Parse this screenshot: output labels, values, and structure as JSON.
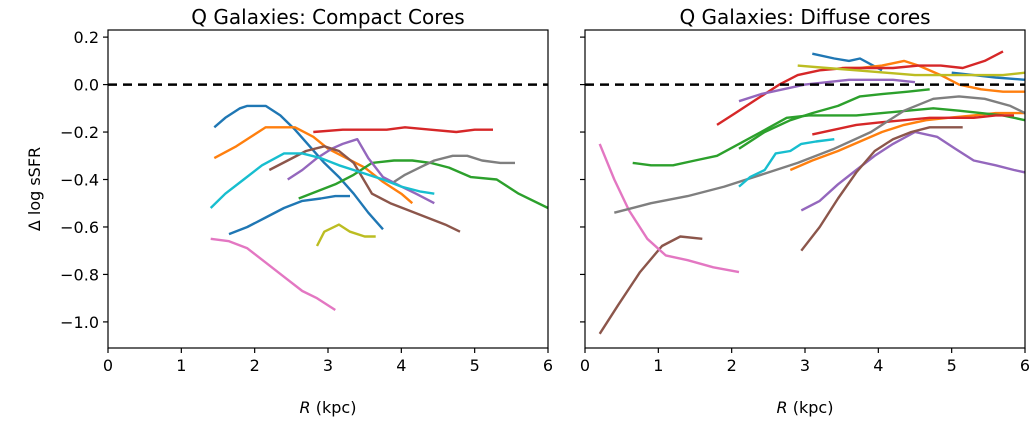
{
  "chart_data": [
    {
      "type": "line",
      "title": "Q Galaxies: Compact Cores",
      "xlabel_italic": "R",
      "xlabel_unit": " (kpc)",
      "ylabel": "Δ log sSFR",
      "xlim": [
        0,
        6
      ],
      "ylim": [
        -1.11,
        0.23
      ],
      "xticks": [
        0,
        1,
        2,
        3,
        4,
        5,
        6
      ],
      "yticks": [
        0.2,
        0.0,
        -0.2,
        -0.4,
        -0.6,
        -0.8,
        -1.0
      ],
      "ytick_labels": [
        "0.2",
        "0.0",
        "−0.2",
        "−0.4",
        "−0.6",
        "−0.8",
        "−1.0"
      ],
      "reference_line": {
        "y": 0.0,
        "style": "dashed",
        "color": "#000000"
      },
      "series": [
        {
          "color": "#1f77b4",
          "x": [
            1.45,
            1.6,
            1.8,
            1.9,
            2.15,
            2.35,
            2.55,
            2.75,
            2.95,
            3.15,
            3.35,
            3.55,
            3.75
          ],
          "y": [
            -0.18,
            -0.14,
            -0.1,
            -0.09,
            -0.09,
            -0.13,
            -0.19,
            -0.26,
            -0.33,
            -0.39,
            -0.46,
            -0.54,
            -0.61
          ]
        },
        {
          "color": "#1f77b4",
          "x": [
            1.65,
            1.9,
            2.15,
            2.4,
            2.65,
            2.9,
            3.1,
            3.3
          ],
          "y": [
            -0.63,
            -0.6,
            -0.56,
            -0.52,
            -0.49,
            -0.48,
            -0.47,
            -0.47
          ]
        },
        {
          "color": "#ff7f0e",
          "x": [
            1.45,
            1.75,
            1.95,
            2.15,
            2.35,
            2.55,
            2.8,
            3.0,
            3.25,
            3.5,
            3.75,
            4.0,
            4.15
          ],
          "y": [
            -0.31,
            -0.26,
            -0.22,
            -0.18,
            -0.18,
            -0.18,
            -0.22,
            -0.27,
            -0.31,
            -0.35,
            -0.41,
            -0.46,
            -0.5
          ]
        },
        {
          "color": "#2ca02c",
          "x": [
            2.6,
            2.85,
            3.1,
            3.35,
            3.6,
            3.9,
            4.15,
            4.4,
            4.65,
            4.95,
            5.3,
            5.6,
            6.0
          ],
          "y": [
            -0.48,
            -0.45,
            -0.42,
            -0.38,
            -0.33,
            -0.32,
            -0.32,
            -0.33,
            -0.35,
            -0.39,
            -0.4,
            -0.46,
            -0.52
          ]
        },
        {
          "color": "#d62728",
          "x": [
            2.8,
            3.2,
            3.5,
            3.8,
            4.05,
            4.4,
            4.75,
            5.0,
            5.25
          ],
          "y": [
            -0.2,
            -0.19,
            -0.19,
            -0.19,
            -0.18,
            -0.19,
            -0.2,
            -0.19,
            -0.19
          ]
        },
        {
          "color": "#9467bd",
          "x": [
            2.45,
            2.65,
            2.85,
            3.05,
            3.2,
            3.4,
            3.55,
            3.75,
            4.0,
            4.2,
            4.45
          ],
          "y": [
            -0.4,
            -0.36,
            -0.31,
            -0.27,
            -0.25,
            -0.23,
            -0.31,
            -0.39,
            -0.43,
            -0.46,
            -0.5
          ]
        },
        {
          "color": "#8c564b",
          "x": [
            2.2,
            2.45,
            2.7,
            2.95,
            3.15,
            3.35,
            3.6,
            3.85,
            4.1,
            4.35,
            4.6,
            4.8
          ],
          "y": [
            -0.36,
            -0.32,
            -0.28,
            -0.26,
            -0.28,
            -0.33,
            -0.46,
            -0.5,
            -0.53,
            -0.56,
            -0.59,
            -0.62
          ]
        },
        {
          "color": "#e377c2",
          "x": [
            1.4,
            1.65,
            1.9,
            2.15,
            2.4,
            2.65,
            2.85,
            3.1
          ],
          "y": [
            -0.65,
            -0.66,
            -0.69,
            -0.75,
            -0.81,
            -0.87,
            -0.9,
            -0.95
          ]
        },
        {
          "color": "#7f7f7f",
          "x": [
            3.9,
            4.05,
            4.25,
            4.45,
            4.7,
            4.9,
            5.1,
            5.35,
            5.55
          ],
          "y": [
            -0.41,
            -0.38,
            -0.35,
            -0.32,
            -0.3,
            -0.3,
            -0.32,
            -0.33,
            -0.33
          ]
        },
        {
          "color": "#bcbd22",
          "x": [
            2.85,
            2.95,
            3.15,
            3.3,
            3.5,
            3.65
          ],
          "y": [
            -0.68,
            -0.62,
            -0.59,
            -0.62,
            -0.64,
            -0.64
          ]
        },
        {
          "color": "#17becf",
          "x": [
            1.4,
            1.6,
            1.85,
            2.1,
            2.4,
            2.65,
            2.9,
            3.15,
            3.45,
            3.75,
            4.0,
            4.25,
            4.45
          ],
          "y": [
            -0.52,
            -0.46,
            -0.4,
            -0.34,
            -0.29,
            -0.29,
            -0.31,
            -0.34,
            -0.37,
            -0.4,
            -0.43,
            -0.45,
            -0.46
          ]
        }
      ]
    },
    {
      "type": "line",
      "title": "Q Galaxies: Diffuse cores",
      "xlabel_italic": "R",
      "xlabel_unit": " (kpc)",
      "ylabel": "",
      "xlim": [
        0,
        6
      ],
      "ylim": [
        -1.11,
        0.23
      ],
      "xticks": [
        0,
        1,
        2,
        3,
        4,
        5,
        6
      ],
      "yticks": [
        0.2,
        0.0,
        -0.2,
        -0.4,
        -0.6,
        -0.8,
        -1.0
      ],
      "ytick_labels": [
        "",
        "",
        "",
        "",
        "",
        "",
        ""
      ],
      "reference_line": {
        "y": 0.0,
        "style": "dashed",
        "color": "#000000"
      },
      "series": [
        {
          "color": "#1f77b4",
          "x": [
            3.1,
            3.4,
            3.6,
            3.75,
            4.05
          ],
          "y": [
            0.13,
            0.11,
            0.1,
            0.11,
            0.06
          ]
        },
        {
          "color": "#1f77b4",
          "x": [
            5.0,
            5.3,
            5.6,
            6.0
          ],
          "y": [
            0.05,
            0.04,
            0.03,
            0.02
          ]
        },
        {
          "color": "#ff7f0e",
          "x": [
            2.8,
            3.1,
            3.45,
            3.75,
            4.05,
            4.35,
            4.65,
            4.95,
            5.3,
            5.6,
            6.0
          ],
          "y": [
            -0.36,
            -0.32,
            -0.28,
            -0.24,
            -0.2,
            -0.17,
            -0.15,
            -0.14,
            -0.13,
            -0.12,
            -0.12
          ]
        },
        {
          "color": "#ff7f0e",
          "x": [
            3.5,
            3.75,
            4.05,
            4.35,
            4.55,
            4.85,
            5.1,
            5.4,
            5.7,
            6.0
          ],
          "y": [
            0.07,
            0.07,
            0.08,
            0.1,
            0.08,
            0.04,
            0.0,
            -0.02,
            -0.03,
            -0.03
          ]
        },
        {
          "color": "#2ca02c",
          "x": [
            0.65,
            0.9,
            1.2,
            1.5,
            1.8,
            2.1,
            2.4,
            2.75,
            3.05,
            3.4,
            3.7,
            4.05,
            4.4,
            4.75,
            5.1,
            5.4,
            5.7,
            6.0
          ],
          "y": [
            -0.33,
            -0.34,
            -0.34,
            -0.32,
            -0.3,
            -0.25,
            -0.2,
            -0.14,
            -0.13,
            -0.13,
            -0.13,
            -0.12,
            -0.11,
            -0.1,
            -0.11,
            -0.12,
            -0.13,
            -0.15
          ]
        },
        {
          "color": "#2ca02c",
          "x": [
            2.1,
            2.45,
            2.8,
            3.1,
            3.45,
            3.75,
            4.05,
            4.4,
            4.7
          ],
          "y": [
            -0.27,
            -0.2,
            -0.15,
            -0.12,
            -0.09,
            -0.05,
            -0.04,
            -0.03,
            -0.02
          ]
        },
        {
          "color": "#d62728",
          "x": [
            1.8,
            2.05,
            2.35,
            2.65,
            2.9,
            3.2,
            3.55,
            3.85,
            4.2,
            4.55,
            4.85,
            5.15,
            5.45,
            5.7
          ],
          "y": [
            -0.17,
            -0.12,
            -0.06,
            0.0,
            0.04,
            0.06,
            0.07,
            0.07,
            0.07,
            0.08,
            0.08,
            0.07,
            0.1,
            0.14
          ]
        },
        {
          "color": "#d62728",
          "x": [
            3.1,
            3.4,
            3.7,
            4.0,
            4.35,
            4.7,
            5.0,
            5.3,
            5.6,
            5.85
          ],
          "y": [
            -0.21,
            -0.19,
            -0.17,
            -0.16,
            -0.15,
            -0.14,
            -0.14,
            -0.14,
            -0.13,
            -0.13
          ]
        },
        {
          "color": "#9467bd",
          "x": [
            2.1,
            2.4,
            2.7,
            3.0,
            3.3,
            3.6,
            3.9,
            4.2,
            4.5
          ],
          "y": [
            -0.07,
            -0.04,
            -0.02,
            0.0,
            0.01,
            0.02,
            0.02,
            0.02,
            0.01
          ]
        },
        {
          "color": "#9467bd",
          "x": [
            2.95,
            3.2,
            3.45,
            3.7,
            3.95,
            4.2,
            4.5,
            4.8,
            5.05,
            5.3,
            5.6,
            5.85,
            6.0
          ],
          "y": [
            -0.53,
            -0.49,
            -0.42,
            -0.36,
            -0.3,
            -0.25,
            -0.2,
            -0.22,
            -0.27,
            -0.32,
            -0.34,
            -0.36,
            -0.37
          ]
        },
        {
          "color": "#8c564b",
          "x": [
            0.2,
            0.45,
            0.75,
            1.05,
            1.3,
            1.6
          ],
          "y": [
            -1.05,
            -0.93,
            -0.79,
            -0.68,
            -0.64,
            -0.65
          ]
        },
        {
          "color": "#8c564b",
          "x": [
            2.95,
            3.2,
            3.45,
            3.7,
            3.95,
            4.2,
            4.45,
            4.7,
            4.95,
            5.15
          ],
          "y": [
            -0.7,
            -0.6,
            -0.48,
            -0.37,
            -0.28,
            -0.23,
            -0.2,
            -0.18,
            -0.18,
            -0.18
          ]
        },
        {
          "color": "#e377c2",
          "x": [
            0.2,
            0.4,
            0.6,
            0.85,
            1.1,
            1.4,
            1.75,
            2.1
          ],
          "y": [
            -0.25,
            -0.4,
            -0.53,
            -0.65,
            -0.72,
            -0.74,
            -0.77,
            -0.79
          ]
        },
        {
          "color": "#7f7f7f",
          "x": [
            0.4,
            0.9,
            1.4,
            1.9,
            2.4,
            2.9,
            3.4,
            3.9,
            4.35,
            4.75,
            5.1,
            5.45,
            5.8,
            6.0
          ],
          "y": [
            -0.54,
            -0.5,
            -0.47,
            -0.43,
            -0.38,
            -0.33,
            -0.27,
            -0.2,
            -0.11,
            -0.06,
            -0.05,
            -0.06,
            -0.09,
            -0.12
          ]
        },
        {
          "color": "#bcbd22",
          "x": [
            2.9,
            3.3,
            3.7,
            4.1,
            4.5,
            4.9,
            5.3,
            5.7,
            6.0
          ],
          "y": [
            0.08,
            0.07,
            0.06,
            0.05,
            0.04,
            0.04,
            0.04,
            0.04,
            0.05
          ]
        },
        {
          "color": "#17becf",
          "x": [
            2.1,
            2.25,
            2.45,
            2.6,
            2.8,
            2.95,
            3.15,
            3.4
          ],
          "y": [
            -0.43,
            -0.39,
            -0.36,
            -0.29,
            -0.28,
            -0.25,
            -0.24,
            -0.23
          ]
        }
      ]
    }
  ]
}
